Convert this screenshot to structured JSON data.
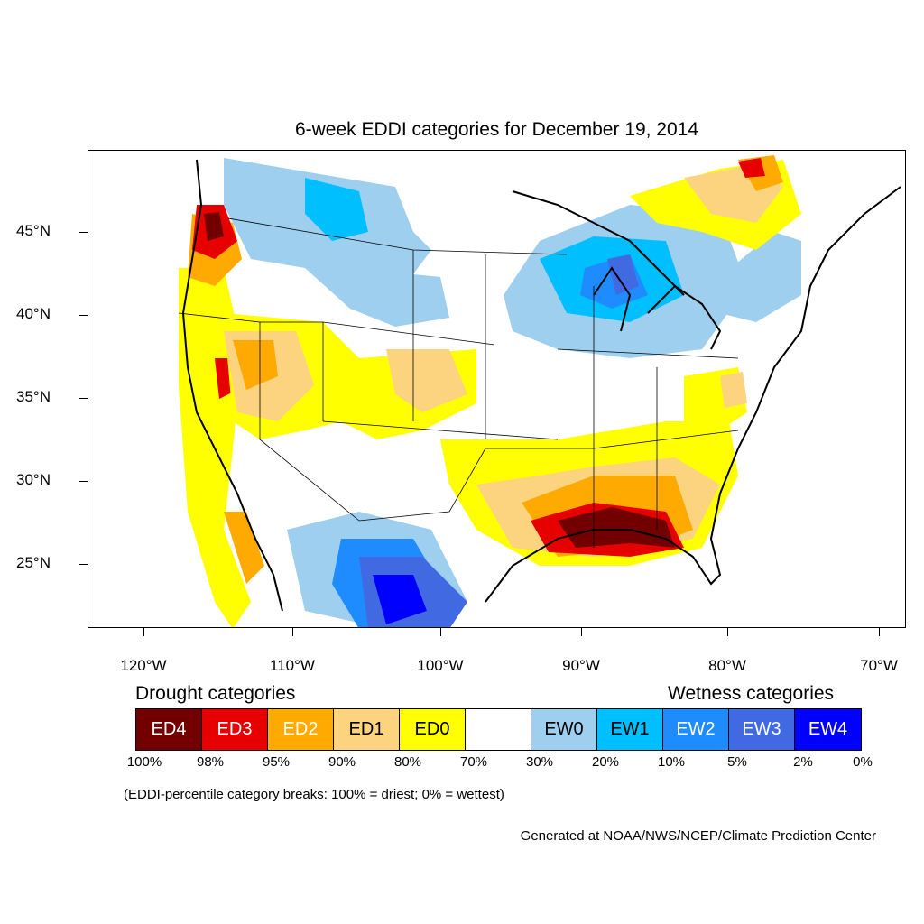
{
  "title": "6-week EDDI categories for December 19, 2014",
  "lat_labels": [
    "45°N",
    "40°N",
    "35°N",
    "30°N",
    "25°N"
  ],
  "lon_labels": [
    "120°W",
    "110°W",
    "100°W",
    "90°W",
    "80°W",
    "70°W"
  ],
  "legend": {
    "drought_heading": "Drought categories",
    "wetness_heading": "Wetness categories",
    "categories": [
      {
        "label": "ED4",
        "color": "#730000",
        "text_color": "#ffffff"
      },
      {
        "label": "ED3",
        "color": "#e60000",
        "text_color": "#ffffff"
      },
      {
        "label": "ED2",
        "color": "#ffaa00",
        "text_color": "#ffffff"
      },
      {
        "label": "ED1",
        "color": "#fcd37f",
        "text_color": "#000000"
      },
      {
        "label": "ED0",
        "color": "#ffff00",
        "text_color": "#000000"
      },
      {
        "label": "",
        "color": "#ffffff",
        "text_color": "#000000"
      },
      {
        "label": "EW0",
        "color": "#9ecfef",
        "text_color": "#000000"
      },
      {
        "label": "EW1",
        "color": "#00bfff",
        "text_color": "#000000"
      },
      {
        "label": "EW2",
        "color": "#1e8cff",
        "text_color": "#ffffff"
      },
      {
        "label": "EW3",
        "color": "#4169e1",
        "text_color": "#ffffff"
      },
      {
        "label": "EW4",
        "color": "#0000ff",
        "text_color": "#ffffff"
      }
    ],
    "percentiles": [
      "100%",
      "98%",
      "95%",
      "90%",
      "80%",
      "70%",
      "30%",
      "20%",
      "10%",
      "5%",
      "2%",
      "0%"
    ]
  },
  "note": "(EDDI-percentile category breaks: 100% = driest; 0% = wettest)",
  "credit": "Generated at NOAA/NWS/NCEP/Climate Prediction Center"
}
